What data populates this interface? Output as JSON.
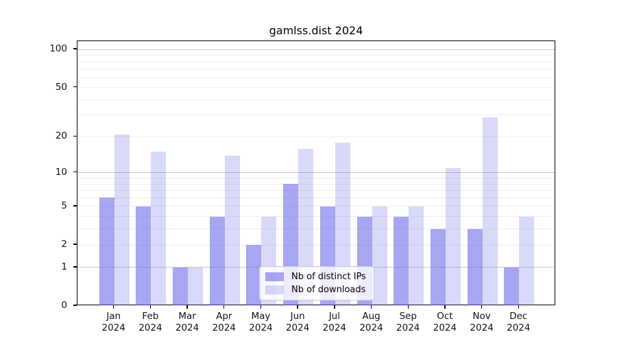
{
  "chart_data": {
    "type": "bar",
    "title": "gamlss.dist 2024",
    "categories": [
      "Jan",
      "Feb",
      "Mar",
      "Apr",
      "May",
      "Jun",
      "Jul",
      "Aug",
      "Sep",
      "Oct",
      "Nov",
      "Dec"
    ],
    "category_year": "2024",
    "series": [
      {
        "name": "Nb of distinct IPs",
        "values": [
          6,
          5,
          1,
          4,
          2,
          8,
          5,
          4,
          4,
          3,
          3,
          1
        ],
        "color": "rgba(97,97,232,0.56)"
      },
      {
        "name": "Nb of downloads",
        "values": [
          21,
          15,
          1,
          14,
          4,
          16,
          18,
          5,
          5,
          11,
          29,
          4
        ],
        "color": "rgba(97,97,232,0.24)"
      }
    ],
    "yscale": "log10(1+v)",
    "yticks": [
      0,
      1,
      2,
      5,
      10,
      20,
      50,
      100
    ],
    "yticks_minor": [
      2,
      3,
      4,
      5,
      6,
      7,
      8,
      9,
      20,
      30,
      40,
      50,
      60,
      70,
      80,
      90
    ],
    "ylim": [
      0,
      115
    ],
    "xlabel": "",
    "ylabel": "",
    "grid": true,
    "legend_position": "lower center"
  },
  "colors": {
    "background": "#ffffff",
    "bar_dark": "rgba(97,97,232,0.56)",
    "bar_light": "rgba(97,97,232,0.24)",
    "grid_major": "#c8c8c8",
    "grid_minor": "#ededed",
    "spine": "#000000",
    "tick_text": "#111111",
    "legend_border": "#cccccc"
  }
}
